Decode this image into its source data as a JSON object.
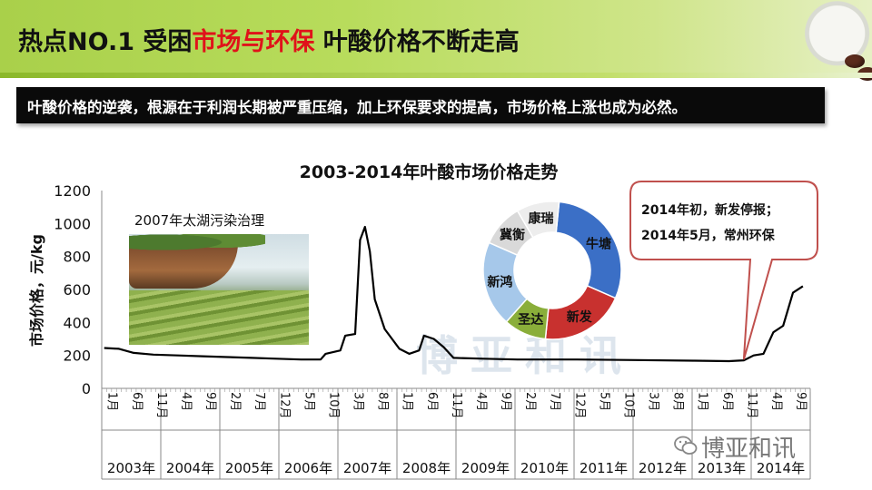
{
  "header": {
    "title_part1": "热点NO.1 受困",
    "title_highlight": "市场与环保",
    "title_part2": " 叶酸价格不断走高"
  },
  "banner": {
    "text": "叶酸价格的逆袭，根源在于利润长期被严重压缩，加上环保要求的提高，市场价格上涨也成为必然。"
  },
  "photo_caption": "2007年太湖污染治理",
  "callout": {
    "line1": "2014年初，新发停报；",
    "line2": "2014年5月，常州环保"
  },
  "watermark": "博亚和讯",
  "wechat_label": "博亚和讯",
  "colors": {
    "accent_green": "#a9d04a",
    "highlight_red": "#e0121a",
    "line": "#000000",
    "callout_border": "#c0504d"
  },
  "chart_data": [
    {
      "type": "line",
      "title": "2003-2014年叶酸市场价格走势",
      "ylabel": "市场价格，元/kg",
      "xlabel": "",
      "ylim": [
        0,
        1200
      ],
      "yticks": [
        0,
        200,
        400,
        600,
        800,
        1000,
        1200
      ],
      "grid": false,
      "month_tick_labels": [
        "1月",
        "6月",
        "11月",
        "4月",
        "9月",
        "2月",
        "7月",
        "12月",
        "5月",
        "10月",
        "3月",
        "8月",
        "1月",
        "6月",
        "11月",
        "4月",
        "9月",
        "2月",
        "7月",
        "12月",
        "5月",
        "10月",
        "3月",
        "8月",
        "1月",
        "6月",
        "11月",
        "4月",
        "9月"
      ],
      "year_labels": [
        "2003年",
        "2004年",
        "2005年",
        "2006年",
        "2007年",
        "2008年",
        "2009年",
        "2010年",
        "2011年",
        "2012年",
        "2013年",
        "2014年"
      ],
      "series": [
        {
          "points": [
            [
              "2003-01",
              245
            ],
            [
              "2003-04",
              240
            ],
            [
              "2003-07",
              215
            ],
            [
              "2003-11",
              205
            ],
            [
              "2004-04",
              200
            ],
            [
              "2004-09",
              195
            ],
            [
              "2005-02",
              190
            ],
            [
              "2005-07",
              185
            ],
            [
              "2005-12",
              180
            ],
            [
              "2006-05",
              175
            ],
            [
              "2006-09",
              175
            ],
            [
              "2006-10",
              210
            ],
            [
              "2007-01",
              230
            ],
            [
              "2007-02",
              320
            ],
            [
              "2007-04",
              330
            ],
            [
              "2007-05",
              900
            ],
            [
              "2007-06",
              980
            ],
            [
              "2007-07",
              830
            ],
            [
              "2007-08",
              540
            ],
            [
              "2007-10",
              360
            ],
            [
              "2007-11",
              320
            ],
            [
              "2008-01",
              240
            ],
            [
              "2008-03",
              210
            ],
            [
              "2008-05",
              230
            ],
            [
              "2008-06",
              320
            ],
            [
              "2008-08",
              300
            ],
            [
              "2008-10",
              250
            ],
            [
              "2008-12",
              185
            ],
            [
              "2009-06",
              180
            ],
            [
              "2010-01",
              175
            ],
            [
              "2011-01",
              175
            ],
            [
              "2012-01",
              172
            ],
            [
              "2013-01",
              168
            ],
            [
              "2013-08",
              165
            ],
            [
              "2013-11",
              170
            ],
            [
              "2014-01",
              200
            ],
            [
              "2014-03",
              210
            ],
            [
              "2014-05",
              340
            ],
            [
              "2014-07",
              380
            ],
            [
              "2014-09",
              580
            ],
            [
              "2014-11",
              620
            ]
          ]
        }
      ]
    },
    {
      "type": "pie",
      "title": "",
      "slices": [
        {
          "label": "牛塘",
          "value": 30,
          "color": "#3b6fc6"
        },
        {
          "label": "新发",
          "value": 20,
          "color": "#c8312f"
        },
        {
          "label": "圣达",
          "value": 10,
          "color": "#8aae3a"
        },
        {
          "label": "新鸿",
          "value": 20,
          "color": "#a6c8ea"
        },
        {
          "label": "冀衡",
          "value": 10,
          "color": "#d9d9d9"
        },
        {
          "label": "康瑞",
          "value": 10,
          "color": "#ededed"
        }
      ]
    }
  ]
}
